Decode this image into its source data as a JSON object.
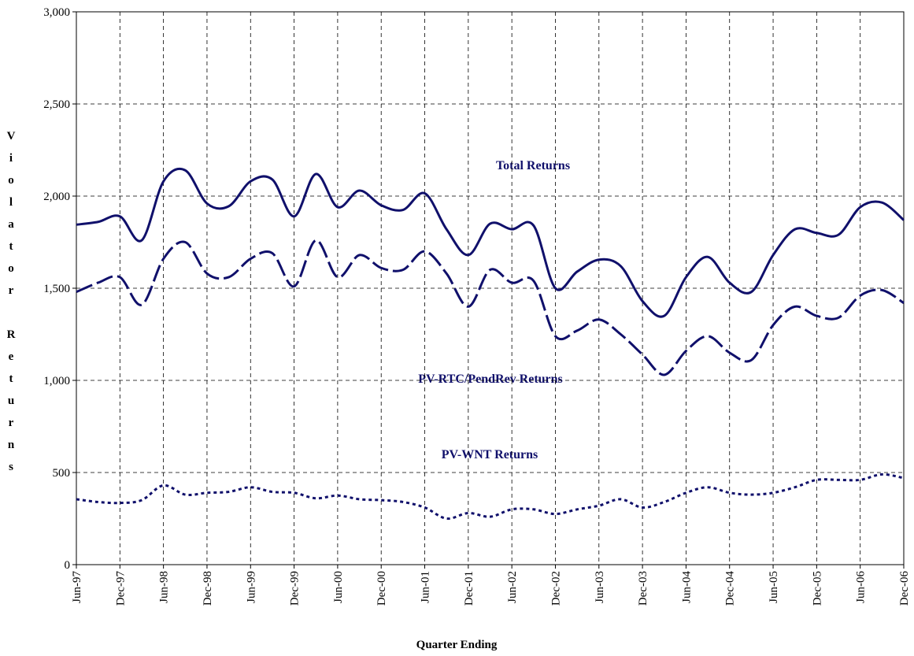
{
  "chart_data": {
    "type": "line",
    "xlabel": "Quarter Ending",
    "ylabel": "Violator Returns",
    "annotations": [
      "Total Returns",
      "PV-RTC/PendRev Returns",
      "PV-WNT Returns"
    ],
    "categories": [
      "Jun-97",
      null,
      "Dec-97",
      null,
      "Jun-98",
      null,
      "Dec-98",
      null,
      "Jun-99",
      null,
      "Dec-99",
      null,
      "Jun-00",
      null,
      "Dec-00",
      null,
      "Jun-01",
      null,
      "Dec-01",
      null,
      "Jun-02",
      null,
      "Dec-02",
      null,
      "Jun-03",
      null,
      "Dec-03",
      null,
      "Jun-04",
      null,
      "Dec-04",
      null,
      "Jun-05",
      null,
      "Dec-05",
      null,
      "Jun-06",
      null,
      "Dec-06"
    ],
    "series": [
      {
        "name": "Total Returns",
        "color": "#10106b",
        "dash": "solid",
        "values": [
          1845,
          1860,
          1890,
          1760,
          2080,
          2140,
          1960,
          1945,
          2080,
          2090,
          1890,
          2120,
          1940,
          2030,
          1950,
          1925,
          2015,
          1820,
          1680,
          1850,
          1820,
          1840,
          1500,
          1590,
          1655,
          1620,
          1430,
          1350,
          1560,
          1670,
          1530,
          1480,
          1680,
          1820,
          1800,
          1790,
          1940,
          1965,
          1870
        ]
      },
      {
        "name": "PV-RTC/PendRev Returns",
        "color": "#10106b",
        "dash": "long",
        "values": [
          1480,
          1530,
          1560,
          1410,
          1660,
          1750,
          1580,
          1560,
          1660,
          1690,
          1510,
          1760,
          1560,
          1680,
          1610,
          1600,
          1700,
          1580,
          1400,
          1600,
          1530,
          1540,
          1240,
          1270,
          1330,
          1250,
          1140,
          1030,
          1160,
          1240,
          1150,
          1110,
          1300,
          1400,
          1350,
          1340,
          1460,
          1490,
          1420
        ]
      },
      {
        "name": "PV-WNT Returns",
        "color": "#10106b",
        "dash": "dot",
        "values": [
          355,
          340,
          335,
          350,
          430,
          380,
          390,
          395,
          420,
          395,
          390,
          360,
          375,
          355,
          350,
          340,
          310,
          250,
          280,
          260,
          300,
          300,
          275,
          300,
          320,
          355,
          310,
          340,
          390,
          420,
          390,
          380,
          390,
          420,
          460,
          460,
          460,
          490,
          470
        ]
      }
    ],
    "ylim": [
      0,
      3000
    ],
    "yticks": [
      0,
      500,
      {
        "value": 1000,
        "label": "1,000"
      },
      {
        "value": 1500,
        "label": "1,500"
      },
      {
        "value": 2000,
        "label": "2,000"
      },
      {
        "value": 2500,
        "label": "2,500"
      },
      {
        "value": 3000,
        "label": "3,000"
      }
    ],
    "grid": true
  }
}
